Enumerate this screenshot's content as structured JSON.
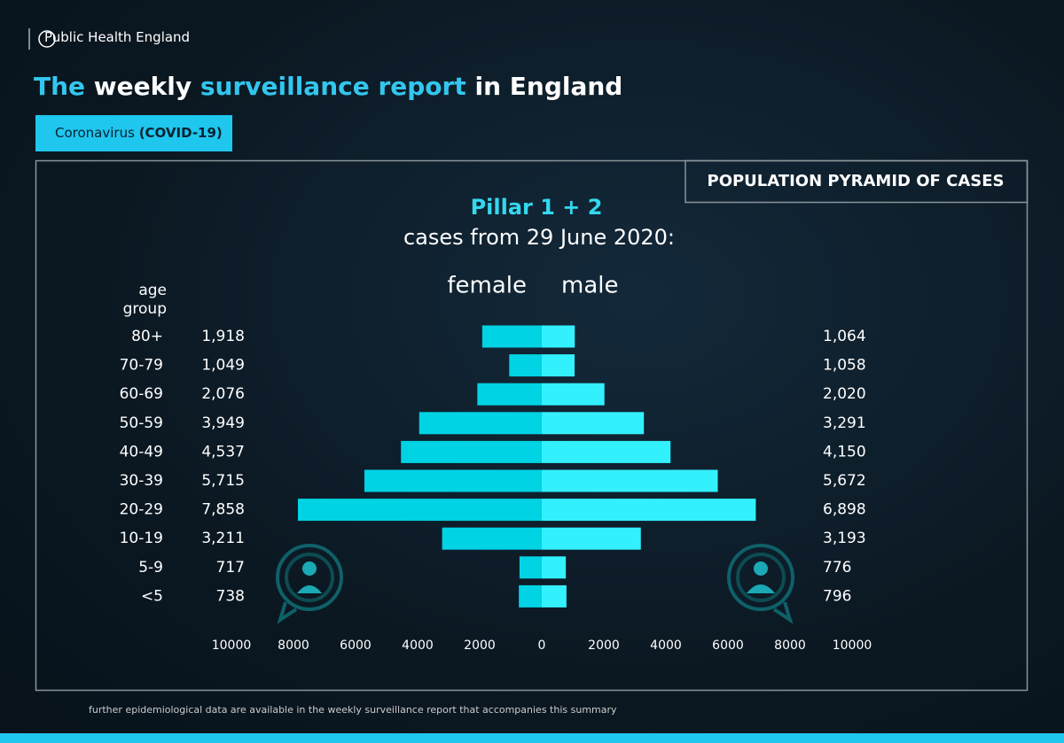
{
  "header": {
    "brand": "Public Health England",
    "title_parts": [
      "The",
      "weekly",
      "surveillance report",
      "in England"
    ],
    "badge": [
      "Coronavirus",
      "(COVID-19)"
    ],
    "footnote": "further epidemiological data are available in the weekly surveillance report that accompanies this summary"
  },
  "chart_data": {
    "type": "pyramid",
    "box_title": "POPULATION PYRAMID OF CASES",
    "title": "Pillar 1 + 2",
    "subtitle": "cases from 29 June 2020:",
    "y_label": "age group",
    "categories": [
      "80+",
      "70-79",
      "60-69",
      "50-59",
      "40-49",
      "30-39",
      "20-29",
      "10-19",
      "5-9",
      "<5"
    ],
    "series": [
      {
        "name": "female",
        "side": "left",
        "color": "#00d3e4",
        "values": [
          1918,
          1049,
          2076,
          3949,
          4537,
          5715,
          7858,
          3211,
          717,
          738
        ],
        "value_labels": [
          "1,918",
          "1,049",
          "2,076",
          "3,949",
          "4,537",
          "5,715",
          "7,858",
          "3,211",
          "717",
          "738"
        ]
      },
      {
        "name": "male",
        "side": "right",
        "color": "#33f0fd",
        "values": [
          1064,
          1058,
          2020,
          3291,
          4150,
          5672,
          6898,
          3193,
          776,
          796
        ],
        "value_labels": [
          "1,064",
          "1,058",
          "2,020",
          "3,291",
          "4,150",
          "5,672",
          "6,898",
          "3,193",
          "776",
          "796"
        ]
      }
    ],
    "xlim": [
      0,
      10000
    ],
    "xticks_left": [
      10000,
      8000,
      6000,
      4000,
      2000,
      0
    ],
    "xticks_right": [
      2000,
      4000,
      6000,
      8000,
      10000
    ]
  }
}
